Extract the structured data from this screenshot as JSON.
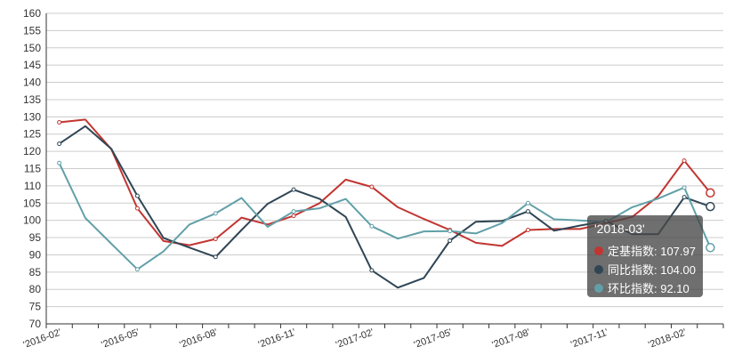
{
  "chart_data": {
    "type": "line",
    "x": [
      "2016-02",
      "2016-03",
      "2016-04",
      "2016-05",
      "2016-06",
      "2016-07",
      "2016-08",
      "2016-09",
      "2016-10",
      "2016-11",
      "2016-12",
      "2017-01",
      "2017-02",
      "2017-03",
      "2017-04",
      "2017-05",
      "2017-06",
      "2017-07",
      "2017-08",
      "2017-09",
      "2017-10",
      "2017-11",
      "2017-12",
      "2018-01",
      "2018-02",
      "2018-03"
    ],
    "x_tick_labels": [
      "'2016-02'",
      "'2016-05'",
      "'2016-08'",
      "'2016-11'",
      "'2017-02'",
      "'2017-05'",
      "'2017-08'",
      "'2017-11'",
      "'2018-02'"
    ],
    "ylim": [
      70,
      160
    ],
    "y_ticks": [
      70,
      75,
      80,
      85,
      90,
      95,
      100,
      105,
      110,
      115,
      120,
      125,
      130,
      135,
      140,
      145,
      150,
      155,
      160
    ],
    "grid": true,
    "series": [
      {
        "name": "定基指数",
        "color": "#c23531",
        "values": [
          128.4,
          129.2,
          120.6,
          103.5,
          94.0,
          92.8,
          94.6,
          100.8,
          98.8,
          101.3,
          105.0,
          111.8,
          109.7,
          103.8,
          100.4,
          97.2,
          93.5,
          92.6,
          97.2,
          97.5,
          97.5,
          99.2,
          101.0,
          107.0,
          117.3,
          107.97
        ]
      },
      {
        "name": "同比指数",
        "color": "#2f4554",
        "values": [
          122.2,
          127.3,
          120.7,
          107.1,
          94.9,
          92.1,
          89.4,
          97.2,
          104.8,
          108.9,
          106.2,
          101.0,
          85.5,
          80.5,
          83.3,
          94.1,
          99.6,
          99.8,
          102.6,
          97.0,
          98.5,
          99.8,
          96.0,
          96.0,
          106.7,
          104.0
        ]
      },
      {
        "name": "环比指数",
        "color": "#61a0a8",
        "values": [
          116.6,
          100.7,
          93.2,
          85.8,
          91.0,
          98.8,
          102.0,
          106.5,
          98.1,
          102.6,
          103.5,
          106.2,
          98.3,
          94.7,
          96.8,
          96.9,
          96.2,
          99.2,
          105.0,
          100.3,
          100.0,
          99.5,
          103.8,
          106.3,
          109.5,
          92.1
        ]
      }
    ]
  },
  "tooltip": {
    "title": "'2018-03'",
    "rows": [
      {
        "text": "定基指数: 107.97",
        "color": "#c23531"
      },
      {
        "text": "同比指数: 104.00",
        "color": "#2f4554"
      },
      {
        "text": "环比指数: 92.10",
        "color": "#61a0a8"
      }
    ]
  }
}
